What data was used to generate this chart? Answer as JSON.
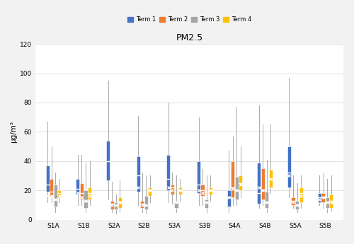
{
  "title": "PM2.5",
  "ylabel": "μg/m³",
  "ylim": [
    0,
    120
  ],
  "yticks": [
    0,
    20,
    40,
    60,
    80,
    100,
    120
  ],
  "schools": [
    "S1A",
    "S1B",
    "S2A",
    "S2B",
    "S3A",
    "S3B",
    "S4A",
    "S4B",
    "S5A",
    "S5B"
  ],
  "terms": [
    "Term 1",
    "Term 2",
    "Term 3",
    "Term 4"
  ],
  "colors": [
    "#4472C4",
    "#ED7D31",
    "#A5A5A5",
    "#FFC000"
  ],
  "background": "#f2f2f2",
  "plot_bg": "#ffffff",
  "grid_color": "#e0e0e0",
  "boxes": {
    "S1A": {
      "Term 1": {
        "whislo": 12,
        "q1": 19,
        "med": 24,
        "q3": 37,
        "whishi": 67,
        "mean": 16
      },
      "Term 2": {
        "whislo": 12,
        "q1": 16,
        "med": 19,
        "q3": 28,
        "whishi": 50,
        "mean": 16
      },
      "Term 3": {
        "whislo": 5,
        "q1": 9,
        "med": 14,
        "q3": 24,
        "whishi": 32,
        "mean": 14
      },
      "Term 4": {
        "whislo": 12,
        "q1": 15,
        "med": 18,
        "q3": 20,
        "whishi": 28,
        "mean": 16
      }
    },
    "S1B": {
      "Term 1": {
        "whislo": 10,
        "q1": 17,
        "med": 21,
        "q3": 28,
        "whishi": 44,
        "mean": 18
      },
      "Term 2": {
        "whislo": 10,
        "q1": 14,
        "med": 18,
        "q3": 25,
        "whishi": 44,
        "mean": 15
      },
      "Term 3": {
        "whislo": 5,
        "q1": 8,
        "med": 13,
        "q3": 20,
        "whishi": 39,
        "mean": 13
      },
      "Term 4": {
        "whislo": 10,
        "q1": 14,
        "med": 18,
        "q3": 22,
        "whishi": 40,
        "mean": 16
      }
    },
    "S2A": {
      "Term 1": {
        "whislo": 14,
        "q1": 27,
        "med": 40,
        "q3": 54,
        "whishi": 95,
        "mean": 10
      },
      "Term 2": {
        "whislo": 5,
        "q1": 7,
        "med": 11,
        "q3": 13,
        "whishi": 26,
        "mean": 10
      },
      "Term 3": {
        "whislo": 4,
        "q1": 7,
        "med": 10,
        "q3": 12,
        "whishi": 17,
        "mean": 10
      },
      "Term 4": {
        "whislo": 5,
        "q1": 8,
        "med": 12,
        "q3": 15,
        "whishi": 27,
        "mean": 12
      }
    },
    "S2B": {
      "Term 1": {
        "whislo": 10,
        "q1": 19,
        "med": 30,
        "q3": 43,
        "whishi": 71,
        "mean": 22
      },
      "Term 2": {
        "whislo": 5,
        "q1": 8,
        "med": 11,
        "q3": 13,
        "whishi": 32,
        "mean": 10
      },
      "Term 3": {
        "whislo": 4,
        "q1": 7,
        "med": 10,
        "q3": 16,
        "whishi": 30,
        "mean": 10
      },
      "Term 4": {
        "whislo": 12,
        "q1": 16,
        "med": 20,
        "q3": 22,
        "whishi": 30,
        "mean": 20
      }
    },
    "S3A": {
      "Term 1": {
        "whislo": 12,
        "q1": 20,
        "med": 28,
        "q3": 44,
        "whishi": 80,
        "mean": 22
      },
      "Term 2": {
        "whislo": 11,
        "q1": 17,
        "med": 22,
        "q3": 24,
        "whishi": 32,
        "mean": 20
      },
      "Term 3": {
        "whislo": 5,
        "q1": 8,
        "med": 12,
        "q3": 13,
        "whishi": 30,
        "mean": 12
      },
      "Term 4": {
        "whislo": 13,
        "q1": 17,
        "med": 20,
        "q3": 22,
        "whishi": 28,
        "mean": 20
      }
    },
    "S3B": {
      "Term 1": {
        "whislo": 10,
        "q1": 18,
        "med": 24,
        "q3": 40,
        "whishi": 70,
        "mean": 20
      },
      "Term 2": {
        "whislo": 10,
        "q1": 16,
        "med": 20,
        "q3": 24,
        "whishi": 35,
        "mean": 18
      },
      "Term 3": {
        "whislo": 5,
        "q1": 8,
        "med": 12,
        "q3": 14,
        "whishi": 30,
        "mean": 12
      },
      "Term 4": {
        "whislo": 13,
        "q1": 17,
        "med": 20,
        "q3": 22,
        "whishi": 30,
        "mean": 20
      }
    },
    "S4A": {
      "Term 1": {
        "whislo": 5,
        "q1": 9,
        "med": 15,
        "q3": 20,
        "whishi": 47,
        "mean": 15
      },
      "Term 2": {
        "whislo": 10,
        "q1": 15,
        "med": 22,
        "q3": 40,
        "whishi": 57,
        "mean": 21
      },
      "Term 3": {
        "whislo": 10,
        "q1": 14,
        "med": 20,
        "q3": 29,
        "whishi": 77,
        "mean": 20
      },
      "Term 4": {
        "whislo": 15,
        "q1": 20,
        "med": 25,
        "q3": 30,
        "whishi": 50,
        "mean": 24
      }
    },
    "S4B": {
      "Term 1": {
        "whislo": 8,
        "q1": 11,
        "med": 18,
        "q3": 39,
        "whishi": 78,
        "mean": 22
      },
      "Term 2": {
        "whislo": 10,
        "q1": 14,
        "med": 20,
        "q3": 35,
        "whishi": 65,
        "mean": 20
      },
      "Term 3": {
        "whislo": 5,
        "q1": 8,
        "med": 12,
        "q3": 19,
        "whishi": 41,
        "mean": 12
      },
      "Term 4": {
        "whislo": 18,
        "q1": 22,
        "med": 28,
        "q3": 34,
        "whishi": 65,
        "mean": 28
      }
    },
    "S5A": {
      "Term 1": {
        "whislo": 15,
        "q1": 22,
        "med": 32,
        "q3": 50,
        "whishi": 97,
        "mean": 30
      },
      "Term 2": {
        "whislo": 8,
        "q1": 10,
        "med": 13,
        "q3": 15,
        "whishi": 30,
        "mean": 12
      },
      "Term 3": {
        "whislo": 5,
        "q1": 7,
        "med": 10,
        "q3": 13,
        "whishi": 25,
        "mean": 10
      },
      "Term 4": {
        "whislo": 8,
        "q1": 12,
        "med": 18,
        "q3": 22,
        "whishi": 30,
        "mean": 16
      }
    },
    "S5B": {
      "Term 1": {
        "whislo": 10,
        "q1": 12,
        "med": 15,
        "q3": 18,
        "whishi": 30,
        "mean": 14
      },
      "Term 2": {
        "whislo": 8,
        "q1": 12,
        "med": 15,
        "q3": 18,
        "whishi": 32,
        "mean": 15
      },
      "Term 3": {
        "whislo": 5,
        "q1": 8,
        "med": 12,
        "q3": 15,
        "whishi": 28,
        "mean": 12
      },
      "Term 4": {
        "whislo": 6,
        "q1": 8,
        "med": 13,
        "q3": 17,
        "whishi": 30,
        "mean": 12
      }
    }
  }
}
